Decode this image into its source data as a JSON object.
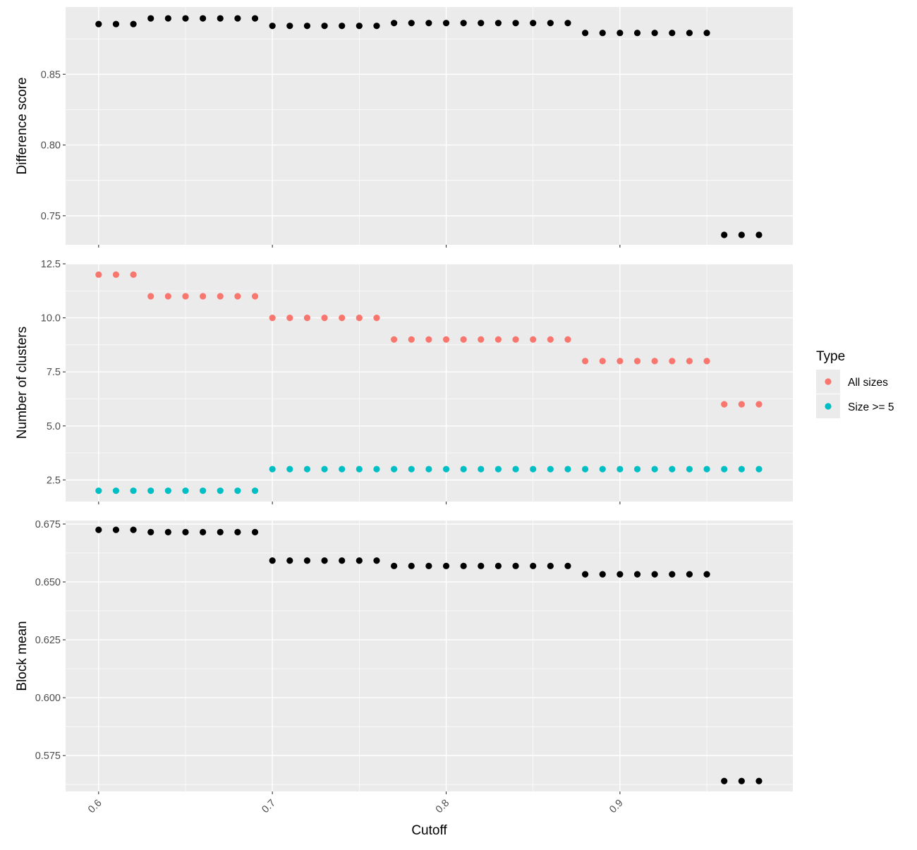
{
  "chart_data": {
    "type": "scatter",
    "xlabel": "Cutoff",
    "x_ticks": [
      0.6,
      0.7,
      0.8,
      0.9
    ],
    "x_tick_labels": [
      "0.6",
      "0.7",
      "0.8",
      "0.9"
    ],
    "xlim": [
      0.581,
      0.9995
    ],
    "x": [
      0.6,
      0.61,
      0.62,
      0.63,
      0.64,
      0.65,
      0.66,
      0.67,
      0.68,
      0.69,
      0.7,
      0.71,
      0.72,
      0.73,
      0.74,
      0.75,
      0.76,
      0.77,
      0.78,
      0.79,
      0.8,
      0.81,
      0.82,
      0.83,
      0.84,
      0.85,
      0.86,
      0.87,
      0.88,
      0.89,
      0.9,
      0.91,
      0.92,
      0.93,
      0.94,
      0.95,
      0.96,
      0.97,
      0.98
    ],
    "grid": true,
    "panels": [
      {
        "ylabel": "Difference score",
        "ylim": [
          0.7295,
          0.8975
        ],
        "y_ticks": [
          0.75,
          0.8,
          0.85
        ],
        "y_tick_labels": [
          "0.75",
          "0.80",
          "0.85"
        ],
        "series": [
          {
            "color": "#000000",
            "values": [
              0.8855,
              0.8855,
              0.8855,
              0.8895,
              0.8895,
              0.8895,
              0.8895,
              0.8895,
              0.8895,
              0.8895,
              0.8842,
              0.8842,
              0.8842,
              0.8842,
              0.8842,
              0.8842,
              0.8842,
              0.8862,
              0.8862,
              0.8862,
              0.8862,
              0.8862,
              0.8862,
              0.8862,
              0.8862,
              0.8862,
              0.8862,
              0.8862,
              0.8792,
              0.8792,
              0.8792,
              0.8792,
              0.8792,
              0.8792,
              0.8792,
              0.8792,
              0.7365,
              0.7365,
              0.7365
            ]
          }
        ]
      },
      {
        "ylabel": "Number of clusters",
        "ylim": [
          1.5,
          12.5
        ],
        "y_ticks": [
          2.5,
          5.0,
          7.5,
          10.0,
          12.5
        ],
        "y_tick_labels": [
          "2.5",
          "5.0",
          "7.5",
          "10.0",
          "12.5"
        ],
        "series": [
          {
            "name": "All sizes",
            "color": "#F8766D",
            "values": [
              12,
              12,
              12,
              11,
              11,
              11,
              11,
              11,
              11,
              11,
              10,
              10,
              10,
              10,
              10,
              10,
              10,
              9,
              9,
              9,
              9,
              9,
              9,
              9,
              9,
              9,
              9,
              9,
              8,
              8,
              8,
              8,
              8,
              8,
              8,
              8,
              6,
              6,
              6
            ]
          },
          {
            "name": "Size >= 5",
            "color": "#00BFC4",
            "values": [
              2,
              2,
              2,
              2,
              2,
              2,
              2,
              2,
              2,
              2,
              3,
              3,
              3,
              3,
              3,
              3,
              3,
              3,
              3,
              3,
              3,
              3,
              3,
              3,
              3,
              3,
              3,
              3,
              3,
              3,
              3,
              3,
              3,
              3,
              3,
              3,
              3,
              3,
              3
            ]
          }
        ]
      },
      {
        "ylabel": "Block mean",
        "ylim": [
          0.5595,
          0.6765
        ],
        "y_ticks": [
          0.575,
          0.6,
          0.625,
          0.65,
          0.675
        ],
        "y_tick_labels": [
          "0.575",
          "0.600",
          "0.625",
          "0.650",
          "0.675"
        ],
        "series": [
          {
            "color": "#000000",
            "values": [
              0.6725,
              0.6725,
              0.6725,
              0.6715,
              0.6715,
              0.6715,
              0.6715,
              0.6715,
              0.6715,
              0.6715,
              0.6592,
              0.6592,
              0.6592,
              0.6592,
              0.6592,
              0.6592,
              0.6592,
              0.6569,
              0.6569,
              0.6569,
              0.6569,
              0.6569,
              0.6569,
              0.6569,
              0.6569,
              0.6569,
              0.6569,
              0.6569,
              0.6533,
              0.6533,
              0.6533,
              0.6533,
              0.6533,
              0.6533,
              0.6533,
              0.6533,
              0.564,
              0.564,
              0.564
            ]
          }
        ]
      }
    ],
    "legend": {
      "title": "Type",
      "position": "right",
      "entries": [
        {
          "label": "All sizes",
          "color": "#F8766D"
        },
        {
          "label": "Size >= 5",
          "color": "#00BFC4"
        }
      ]
    }
  }
}
